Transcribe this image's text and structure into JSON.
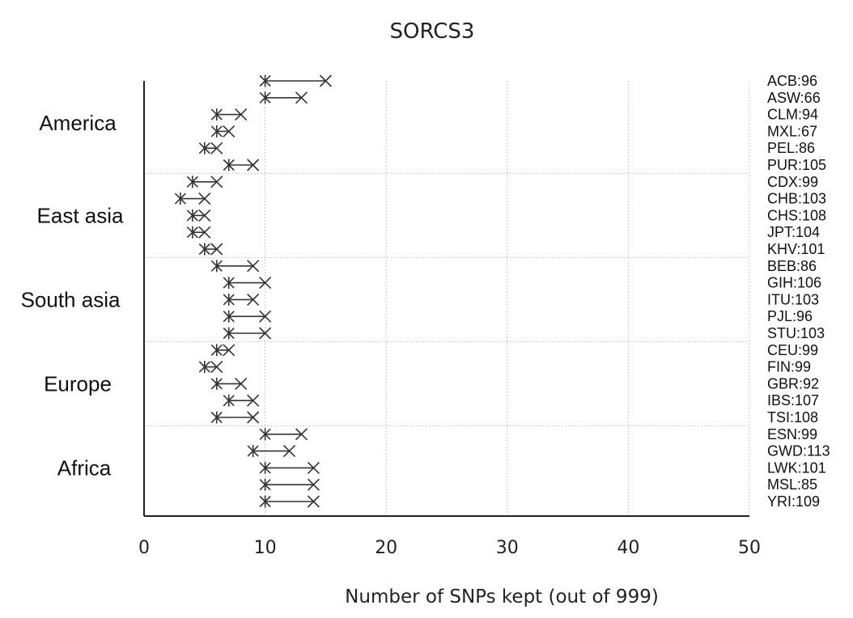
{
  "chart_data": {
    "type": "scatter",
    "title": "SORCS3",
    "xlabel": "Number of SNPs kept (out of 999)",
    "xlim": [
      0,
      50
    ],
    "xticks": [
      "0",
      "10",
      "20",
      "30",
      "40",
      "50"
    ],
    "groups": [
      "America",
      "East asia",
      "South asia",
      "Europe",
      "Africa"
    ],
    "rows": [
      {
        "label": "ACB:96",
        "group": "America",
        "star": 10,
        "cross": 15
      },
      {
        "label": "ASW:66",
        "group": "America",
        "star": 10,
        "cross": 13
      },
      {
        "label": "CLM:94",
        "group": "America",
        "star": 6,
        "cross": 8
      },
      {
        "label": "MXL:67",
        "group": "America",
        "star": 6,
        "cross": 7
      },
      {
        "label": "PEL:86",
        "group": "America",
        "star": 5,
        "cross": 6
      },
      {
        "label": "PUR:105",
        "group": "America",
        "star": 7,
        "cross": 9
      },
      {
        "label": "CDX:99",
        "group": "East asia",
        "star": 4,
        "cross": 6
      },
      {
        "label": "CHB:103",
        "group": "East asia",
        "star": 3,
        "cross": 5
      },
      {
        "label": "CHS:108",
        "group": "East asia",
        "star": 4,
        "cross": 5
      },
      {
        "label": "JPT:104",
        "group": "East asia",
        "star": 4,
        "cross": 5
      },
      {
        "label": "KHV:101",
        "group": "East asia",
        "star": 5,
        "cross": 6
      },
      {
        "label": "BEB:86",
        "group": "South asia",
        "star": 6,
        "cross": 9
      },
      {
        "label": "GIH:106",
        "group": "South asia",
        "star": 7,
        "cross": 10
      },
      {
        "label": "ITU:103",
        "group": "South asia",
        "star": 7,
        "cross": 9
      },
      {
        "label": "PJL:96",
        "group": "South asia",
        "star": 7,
        "cross": 10
      },
      {
        "label": "STU:103",
        "group": "South asia",
        "star": 7,
        "cross": 10
      },
      {
        "label": "CEU:99",
        "group": "Europe",
        "star": 6,
        "cross": 7
      },
      {
        "label": "FIN:99",
        "group": "Europe",
        "star": 5,
        "cross": 6
      },
      {
        "label": "GBR:92",
        "group": "Europe",
        "star": 6,
        "cross": 8
      },
      {
        "label": "IBS:107",
        "group": "Europe",
        "star": 7,
        "cross": 9
      },
      {
        "label": "TSI:108",
        "group": "Europe",
        "star": 6,
        "cross": 9
      },
      {
        "label": "ESN:99",
        "group": "Africa",
        "star": 10,
        "cross": 13
      },
      {
        "label": "GWD:113",
        "group": "Africa",
        "star": 9,
        "cross": 12
      },
      {
        "label": "LWK:101",
        "group": "Africa",
        "star": 10,
        "cross": 14
      },
      {
        "label": "MSL:85",
        "group": "Africa",
        "star": 10,
        "cross": 14
      },
      {
        "label": "YRI:109",
        "group": "Africa",
        "star": 10,
        "cross": 14
      }
    ],
    "grid": true
  }
}
